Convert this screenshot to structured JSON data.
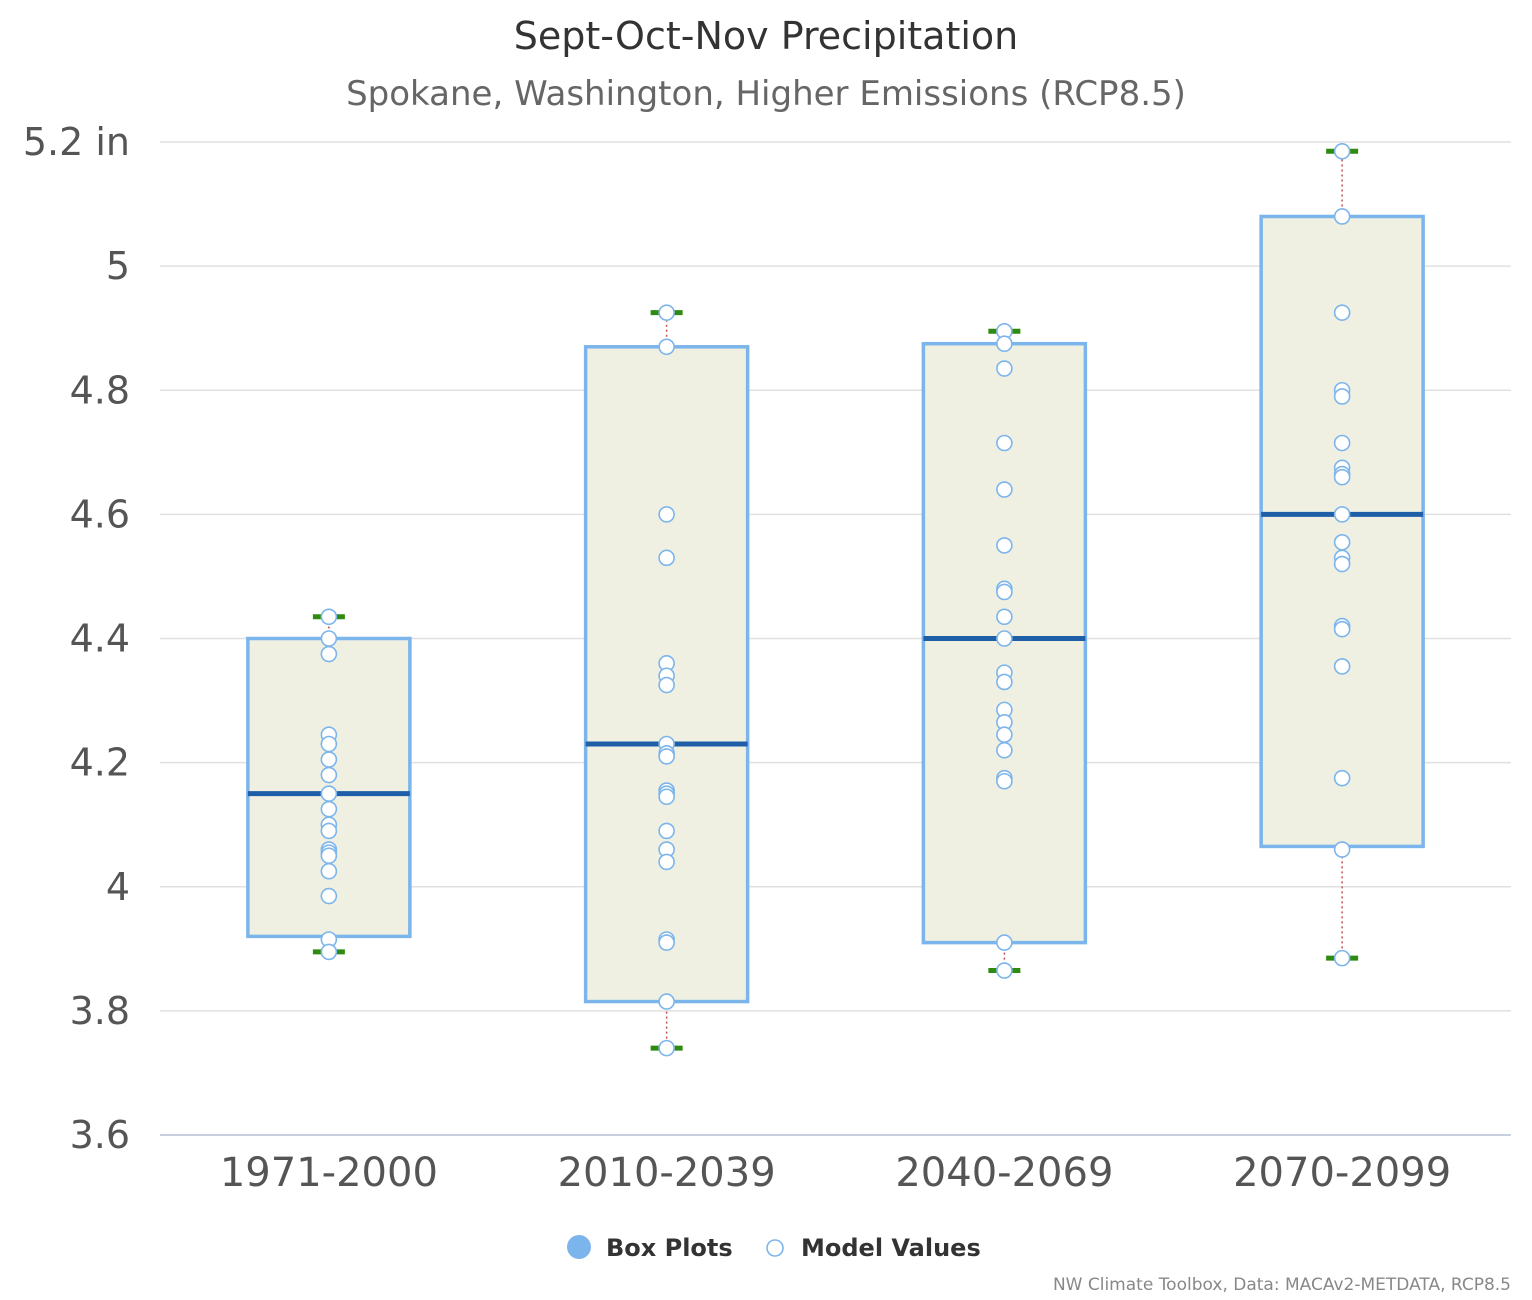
{
  "chart_data": {
    "type": "boxplot",
    "title": "Sept-Oct-Nov Precipitation",
    "subtitle": "Spokane, Washington, Higher Emissions (RCP8.5)",
    "y_unit": "in",
    "yticks": [
      3.6,
      3.8,
      4,
      4.2,
      4.4,
      4.6,
      4.8,
      5,
      5.2
    ],
    "ytick_labels": [
      "3.6",
      "3.8",
      "4",
      "4.2",
      "4.4",
      "4.6",
      "4.8",
      "5",
      "5.2 in"
    ],
    "ylim": [
      3.6,
      5.2
    ],
    "grid": true,
    "legend_position": "bottom",
    "categories": [
      "1971-2000",
      "2010-2039",
      "2040-2069",
      "2070-2099"
    ],
    "series": [
      {
        "name": "Box Plots",
        "color": "#7cb5ec",
        "fill": "#eff0e2",
        "median_color": "#1f5fa8",
        "whisker_color": "#2e8b0f",
        "stem_color": "#c0504d",
        "boxes": [
          {
            "low": 3.895,
            "q1": 3.92,
            "median": 4.15,
            "q3": 4.4,
            "high": 4.435
          },
          {
            "low": 3.74,
            "q1": 3.815,
            "median": 4.23,
            "q3": 4.87,
            "high": 4.925
          },
          {
            "low": 3.865,
            "q1": 3.91,
            "median": 4.4,
            "q3": 4.875,
            "high": 4.895
          },
          {
            "low": 3.885,
            "q1": 4.065,
            "median": 4.6,
            "q3": 5.08,
            "high": 5.185
          }
        ]
      },
      {
        "name": "Model Values",
        "color": "#7cb5ec",
        "points": [
          [
            4.435,
            4.4,
            4.375,
            4.245,
            4.23,
            4.205,
            4.18,
            4.15,
            4.125,
            4.1,
            4.09,
            4.06,
            4.055,
            4.05,
            4.025,
            3.985,
            3.915,
            3.895
          ],
          [
            4.925,
            4.87,
            4.6,
            4.53,
            4.36,
            4.34,
            4.325,
            4.23,
            4.215,
            4.21,
            4.155,
            4.15,
            4.145,
            4.09,
            4.06,
            4.04,
            3.915,
            3.91,
            3.815,
            3.74
          ],
          [
            4.895,
            4.875,
            4.835,
            4.715,
            4.64,
            4.55,
            4.48,
            4.475,
            4.435,
            4.4,
            4.345,
            4.33,
            4.285,
            4.265,
            4.245,
            4.22,
            4.175,
            4.17,
            3.91,
            3.865
          ],
          [
            5.185,
            5.08,
            4.925,
            4.8,
            4.79,
            4.715,
            4.675,
            4.665,
            4.66,
            4.6,
            4.555,
            4.53,
            4.52,
            4.42,
            4.415,
            4.355,
            4.175,
            4.06,
            3.885
          ]
        ]
      }
    ]
  },
  "legend": {
    "items": [
      {
        "label": "Box Plots",
        "color": "#7cb5ec"
      },
      {
        "label": "Model Values",
        "color": "#7cb5ec"
      }
    ]
  },
  "credits": "NW Climate Toolbox, Data: MACAv2-METDATA, RCP8.5"
}
